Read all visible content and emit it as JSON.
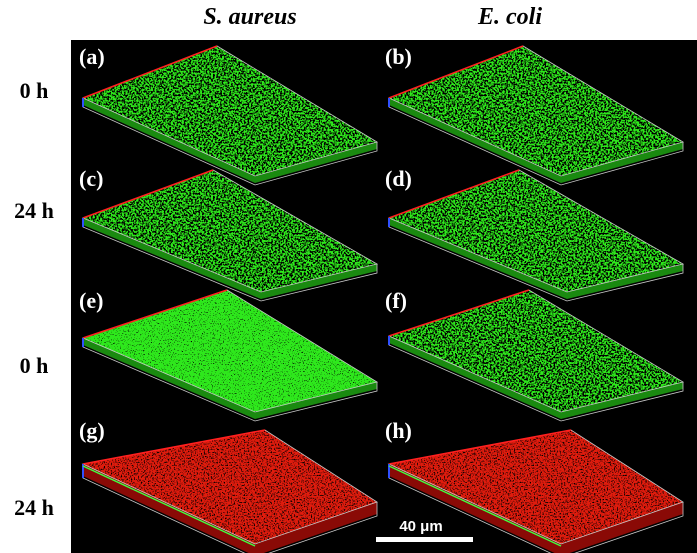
{
  "columns": [
    "S. aureus",
    "E. coli"
  ],
  "rows": [
    "0 h",
    "24 h",
    "0 h",
    "24 h"
  ],
  "panels": [
    {
      "label": "(a)",
      "stain": "green"
    },
    {
      "label": "(b)",
      "stain": "green"
    },
    {
      "label": "(c)",
      "stain": "green"
    },
    {
      "label": "(d)",
      "stain": "green"
    },
    {
      "label": "(e)",
      "stain": "green"
    },
    {
      "label": "(f)",
      "stain": "green"
    },
    {
      "label": "(g)",
      "stain": "red"
    },
    {
      "label": "(h)",
      "stain": "red"
    }
  ],
  "scale_bar": {
    "label": "40 μm"
  },
  "colors": {
    "background": "#000000",
    "live_green": "#2ee81a",
    "dead_red": "#e01a10",
    "box_outline": "#c8c8c8",
    "axis_red": "#ff2020",
    "axis_blue": "#3050ff"
  }
}
